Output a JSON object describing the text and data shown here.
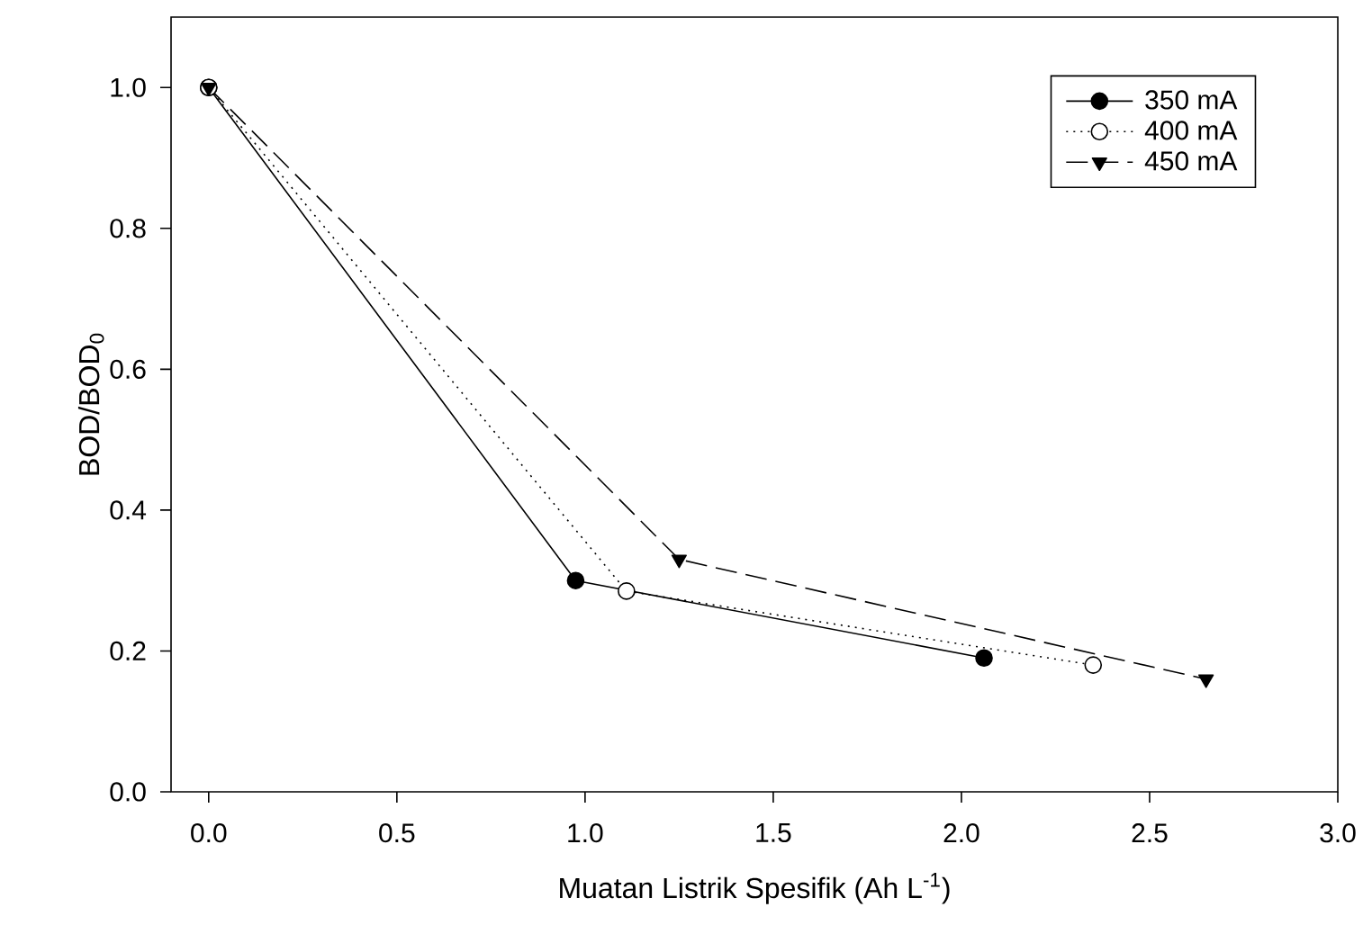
{
  "chart_data": {
    "type": "line",
    "xlabel": "Muatan Listrik Spesifik (Ah L$^{-1}$)",
    "ylabel": "BOD/BOD$_{0}$",
    "xlim": [
      -0.1,
      3.0
    ],
    "ylim": [
      0,
      1.1
    ],
    "xticks": [
      {
        "value": 0,
        "label": "0.0"
      },
      0.5,
      {
        "value": 1,
        "label": "1.0"
      },
      1.5,
      {
        "value": 2,
        "label": "2.0"
      },
      2.5,
      {
        "value": 3,
        "label": "3.0"
      }
    ],
    "yticks": [
      {
        "value": 0,
        "label": "0.0"
      },
      0.2,
      0.4,
      0.6,
      0.8,
      {
        "value": 1,
        "label": "1.0"
      }
    ],
    "legend": "top right",
    "grid": false,
    "series": [
      {
        "name": "350 mA",
        "color": "#000000",
        "marker": "circle",
        "line_style": "solid",
        "x": [
          0,
          0.975,
          2.06
        ],
        "values": [
          1.0,
          0.3,
          0.19
        ]
      },
      {
        "name": "400 mA",
        "color": "#000000",
        "marker": "circle open",
        "line_style": "dotted",
        "x": [
          0,
          1.11,
          2.35
        ],
        "values": [
          1.0,
          0.285,
          0.18
        ]
      },
      {
        "name": "450 mA",
        "color": "#000000",
        "marker": "triangle",
        "line_style": "dashed",
        "x": [
          0,
          1.25,
          2.65
        ],
        "values": [
          1.0,
          0.33,
          0.16
        ]
      }
    ]
  }
}
